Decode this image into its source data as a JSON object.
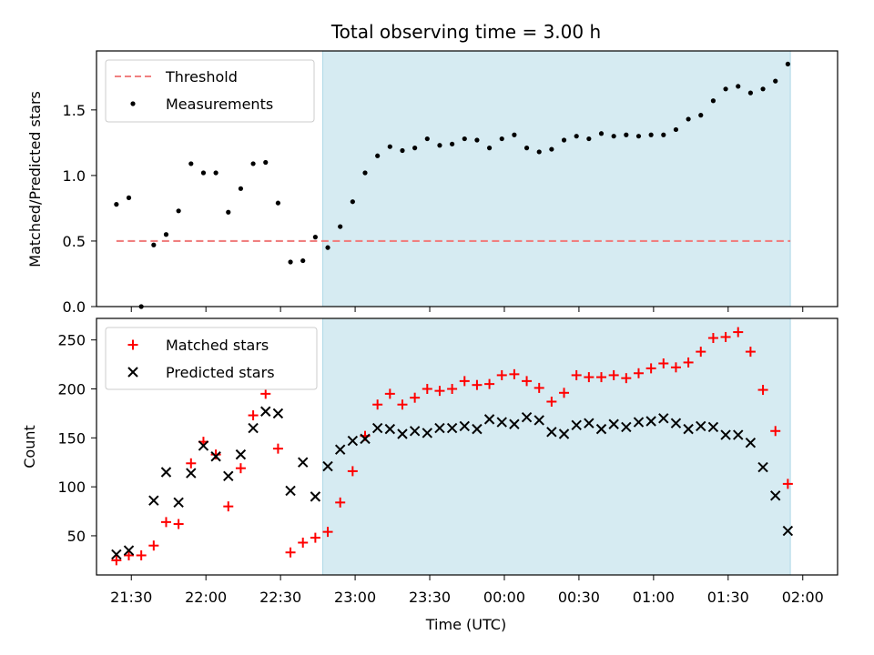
{
  "chart_data": {
    "type": "scatter",
    "title": "Total observing time = 3.00 h",
    "xlabel": "Time (UTC)",
    "x_axis": {
      "type": "time",
      "range": [
        "21:16",
        "02:14"
      ],
      "ticks": [
        "21:30",
        "22:00",
        "22:30",
        "23:00",
        "23:30",
        "00:00",
        "00:30",
        "01:00",
        "01:30",
        "02:00"
      ]
    },
    "shaded_interval": {
      "start": "22:47",
      "end": "01:55",
      "color": "#add8e6"
    },
    "top_panel": {
      "ylabel": "Matched/Predicted stars",
      "ylim": [
        0,
        1.95
      ],
      "yticks": [
        "0.0",
        "0.5",
        "1.0",
        "1.5"
      ],
      "legend": {
        "position": "top-left"
      },
      "threshold": {
        "name": "Threshold",
        "value": 0.5,
        "x_range": [
          "21:24",
          "01:55"
        ],
        "color": "#f08080"
      },
      "measurements": {
        "name": "Measurements",
        "color": "#000000",
        "points": [
          [
            "21:24",
            0.78
          ],
          [
            "21:29",
            0.83
          ],
          [
            "21:34",
            0.0
          ],
          [
            "21:39",
            0.47
          ],
          [
            "21:44",
            0.55
          ],
          [
            "21:49",
            0.73
          ],
          [
            "21:54",
            1.09
          ],
          [
            "21:59",
            1.02
          ],
          [
            "22:04",
            1.02
          ],
          [
            "22:09",
            0.72
          ],
          [
            "22:14",
            0.9
          ],
          [
            "22:19",
            1.09
          ],
          [
            "22:24",
            1.1
          ],
          [
            "22:29",
            0.79
          ],
          [
            "22:34",
            0.34
          ],
          [
            "22:39",
            0.35
          ],
          [
            "22:44",
            0.53
          ],
          [
            "22:49",
            0.45
          ],
          [
            "22:54",
            0.61
          ],
          [
            "22:59",
            0.8
          ],
          [
            "23:04",
            1.02
          ],
          [
            "23:09",
            1.15
          ],
          [
            "23:14",
            1.22
          ],
          [
            "23:19",
            1.19
          ],
          [
            "23:24",
            1.21
          ],
          [
            "23:29",
            1.28
          ],
          [
            "23:34",
            1.23
          ],
          [
            "23:39",
            1.24
          ],
          [
            "23:44",
            1.28
          ],
          [
            "23:49",
            1.27
          ],
          [
            "23:54",
            1.21
          ],
          [
            "23:59",
            1.28
          ],
          [
            "00:04",
            1.31
          ],
          [
            "00:09",
            1.21
          ],
          [
            "00:14",
            1.18
          ],
          [
            "00:19",
            1.2
          ],
          [
            "00:24",
            1.27
          ],
          [
            "00:29",
            1.3
          ],
          [
            "00:34",
            1.28
          ],
          [
            "00:39",
            1.32
          ],
          [
            "00:44",
            1.3
          ],
          [
            "00:49",
            1.31
          ],
          [
            "00:54",
            1.3
          ],
          [
            "00:59",
            1.31
          ],
          [
            "01:04",
            1.31
          ],
          [
            "01:09",
            1.35
          ],
          [
            "01:14",
            1.43
          ],
          [
            "01:19",
            1.46
          ],
          [
            "01:24",
            1.57
          ],
          [
            "01:29",
            1.66
          ],
          [
            "01:34",
            1.68
          ],
          [
            "01:39",
            1.63
          ],
          [
            "01:44",
            1.66
          ],
          [
            "01:49",
            1.72
          ],
          [
            "01:54",
            1.85
          ]
        ]
      }
    },
    "bottom_panel": {
      "ylabel": "Count",
      "ylim": [
        10,
        272
      ],
      "yticks": [
        "50",
        "100",
        "150",
        "200",
        "250"
      ],
      "legend": {
        "position": "top-left"
      },
      "series": [
        {
          "name": "Matched stars",
          "marker": "plus",
          "color": "#ff0000",
          "points": [
            [
              "21:24",
              25
            ],
            [
              "21:29",
              30
            ],
            [
              "21:34",
              30
            ],
            [
              "21:39",
              40
            ],
            [
              "21:44",
              64
            ],
            [
              "21:49",
              62
            ],
            [
              "21:54",
              124
            ],
            [
              "21:59",
              146
            ],
            [
              "22:04",
              133
            ],
            [
              "22:09",
              80
            ],
            [
              "22:14",
              119
            ],
            [
              "22:19",
              173
            ],
            [
              "22:24",
              195
            ],
            [
              "22:29",
              139
            ],
            [
              "22:34",
              33
            ],
            [
              "22:39",
              43
            ],
            [
              "22:44",
              48
            ],
            [
              "22:49",
              54
            ],
            [
              "22:54",
              84
            ],
            [
              "22:59",
              116
            ],
            [
              "23:04",
              152
            ],
            [
              "23:09",
              184
            ],
            [
              "23:14",
              195
            ],
            [
              "23:19",
              184
            ],
            [
              "23:24",
              191
            ],
            [
              "23:29",
              200
            ],
            [
              "23:34",
              198
            ],
            [
              "23:39",
              200
            ],
            [
              "23:44",
              208
            ],
            [
              "23:49",
              204
            ],
            [
              "23:54",
              205
            ],
            [
              "23:59",
              214
            ],
            [
              "00:04",
              215
            ],
            [
              "00:09",
              208
            ],
            [
              "00:14",
              201
            ],
            [
              "00:19",
              187
            ],
            [
              "00:24",
              196
            ],
            [
              "00:29",
              214
            ],
            [
              "00:34",
              212
            ],
            [
              "00:39",
              212
            ],
            [
              "00:44",
              214
            ],
            [
              "00:49",
              211
            ],
            [
              "00:54",
              216
            ],
            [
              "00:59",
              221
            ],
            [
              "01:04",
              226
            ],
            [
              "01:09",
              222
            ],
            [
              "01:14",
              227
            ],
            [
              "01:19",
              238
            ],
            [
              "01:24",
              252
            ],
            [
              "01:29",
              253
            ],
            [
              "01:34",
              258
            ],
            [
              "01:39",
              238
            ],
            [
              "01:44",
              199
            ],
            [
              "01:49",
              157
            ],
            [
              "01:54",
              103
            ]
          ]
        },
        {
          "name": "Predicted stars",
          "marker": "x",
          "color": "#000000",
          "points": [
            [
              "21:24",
              31
            ],
            [
              "21:29",
              35
            ],
            [
              "21:39",
              86
            ],
            [
              "21:44",
              115
            ],
            [
              "21:49",
              84
            ],
            [
              "21:54",
              114
            ],
            [
              "21:59",
              142
            ],
            [
              "22:04",
              131
            ],
            [
              "22:09",
              111
            ],
            [
              "22:14",
              133
            ],
            [
              "22:19",
              160
            ],
            [
              "22:24",
              177
            ],
            [
              "22:29",
              175
            ],
            [
              "22:34",
              96
            ],
            [
              "22:39",
              125
            ],
            [
              "22:44",
              90
            ],
            [
              "22:49",
              121
            ],
            [
              "22:54",
              138
            ],
            [
              "22:59",
              147
            ],
            [
              "23:04",
              149
            ],
            [
              "23:09",
              160
            ],
            [
              "23:14",
              159
            ],
            [
              "23:19",
              154
            ],
            [
              "23:24",
              157
            ],
            [
              "23:29",
              155
            ],
            [
              "23:34",
              160
            ],
            [
              "23:39",
              160
            ],
            [
              "23:44",
              162
            ],
            [
              "23:49",
              159
            ],
            [
              "23:54",
              169
            ],
            [
              "23:59",
              166
            ],
            [
              "00:04",
              164
            ],
            [
              "00:09",
              171
            ],
            [
              "00:14",
              168
            ],
            [
              "00:19",
              156
            ],
            [
              "00:24",
              154
            ],
            [
              "00:29",
              163
            ],
            [
              "00:34",
              165
            ],
            [
              "00:39",
              159
            ],
            [
              "00:44",
              164
            ],
            [
              "00:49",
              161
            ],
            [
              "00:54",
              166
            ],
            [
              "00:59",
              167
            ],
            [
              "01:04",
              170
            ],
            [
              "01:09",
              165
            ],
            [
              "01:14",
              159
            ],
            [
              "01:19",
              162
            ],
            [
              "01:24",
              161
            ],
            [
              "01:29",
              153
            ],
            [
              "01:34",
              153
            ],
            [
              "01:39",
              145
            ],
            [
              "01:44",
              120
            ],
            [
              "01:49",
              91
            ],
            [
              "01:54",
              55
            ]
          ]
        }
      ]
    }
  }
}
